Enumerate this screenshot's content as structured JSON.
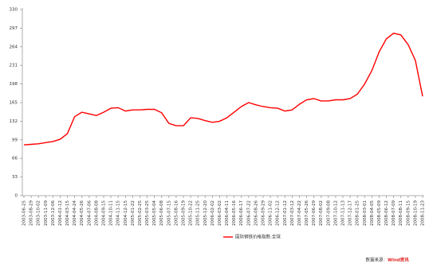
{
  "chart_data": {
    "type": "line",
    "categories": [
      "2003-06-25",
      "2003-08-29",
      "2003-10-02",
      "2003-11-09",
      "2003-12-06",
      "2004-01-12",
      "2004-03-15",
      "2004-04-24",
      "2004-05-26",
      "2004-07-06",
      "2004-08-08",
      "2004-09-15",
      "2004-10-11",
      "2004-11-15",
      "2004-12-15",
      "2005-01-22",
      "2005-02-25",
      "2005-03-25",
      "2005-05-04",
      "2005-06-08",
      "2005-07-15",
      "2005-08-16",
      "2005-09-19",
      "2005-10-22",
      "2005-11-25",
      "2005-12-20",
      "2006-02-02",
      "2006-03-02",
      "2006-04-11",
      "2006-05-16",
      "2006-06-17",
      "2006-07-22",
      "2006-08-26",
      "2006-09-29",
      "2006-11-02",
      "2006-12-12",
      "2007-01-12",
      "2007-03-12",
      "2007-04-22",
      "2007-05-26",
      "2007-06-29",
      "2007-08-02",
      "2007-09-08",
      "2007-10-12",
      "2007-11-13",
      "2007-12-17",
      "2008-01-25",
      "2008-03-01",
      "2008-04-05",
      "2008-05-09",
      "2008-06-12",
      "2008-07-09",
      "2008-08-11",
      "2008-09-15",
      "2008-10-19",
      "2008-11-23"
    ],
    "series": [
      {
        "name": "国际钢铁价格指数:全球",
        "color": "#ff0000",
        "values": [
          90,
          91,
          92,
          94,
          96,
          100,
          110,
          140,
          148,
          145,
          142,
          148,
          155,
          156,
          150,
          152,
          152,
          153,
          153,
          147,
          128,
          124,
          124,
          138,
          137,
          133,
          130,
          132,
          138,
          148,
          158,
          165,
          161,
          158,
          156,
          155,
          150,
          152,
          162,
          170,
          172,
          168,
          168,
          170,
          170,
          172,
          180,
          198,
          222,
          255,
          278,
          288,
          285,
          268,
          240,
          176
        ]
      }
    ],
    "ylim": [
      0,
      330
    ],
    "yticks": [
      0,
      33,
      66,
      99,
      132,
      165,
      198,
      231,
      264,
      297,
      330
    ],
    "source_label": "数据来源：",
    "source_brand": "Wind资讯"
  }
}
